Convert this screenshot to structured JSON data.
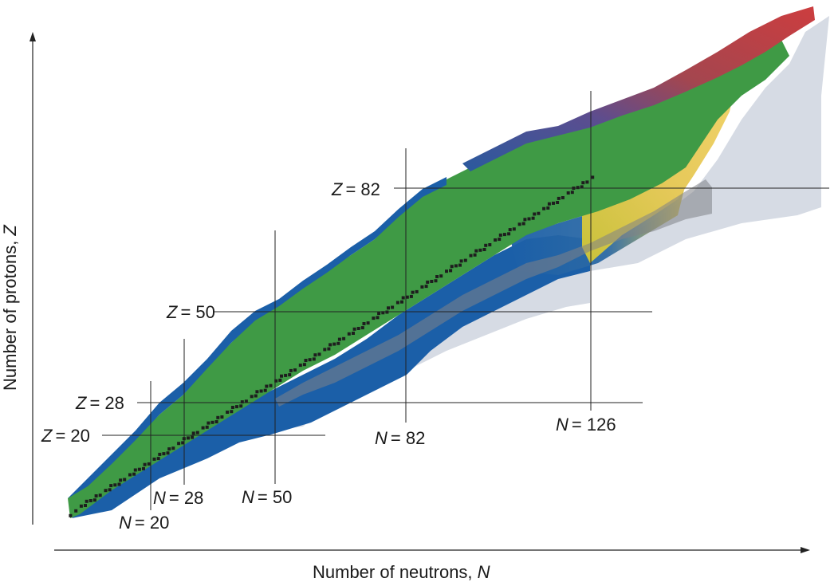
{
  "axes": {
    "x_title": "Number of neutrons, ",
    "x_symbol": "N",
    "y_title": "Number of protons, ",
    "y_symbol": "Z"
  },
  "magic_numbers": {
    "proton_labels": [
      {
        "symbol": "Z",
        "value": "= 20"
      },
      {
        "symbol": "Z",
        "value": "= 28"
      },
      {
        "symbol": "Z",
        "value": "= 50"
      },
      {
        "symbol": "Z",
        "value": "= 82"
      }
    ],
    "neutron_labels": [
      {
        "symbol": "N",
        "value": "= 20"
      },
      {
        "symbol": "N",
        "value": "= 28"
      },
      {
        "symbol": "N",
        "value": "= 50"
      },
      {
        "symbol": "N",
        "value": "= 82"
      },
      {
        "symbol": "N",
        "value": "= 126"
      }
    ]
  },
  "colors": {
    "known_green": "#3f9a45",
    "drip_blue": "#1b5fa8",
    "heavy_red": "#cc3d3f",
    "heavy_purple": "#6a4d8f",
    "yellow": "#e8c95a",
    "predicted_grey": "#d6dbe4",
    "rprocess_grey": "#8a8d90",
    "stable": "#1e1e1e",
    "gridline": "#222222"
  }
}
